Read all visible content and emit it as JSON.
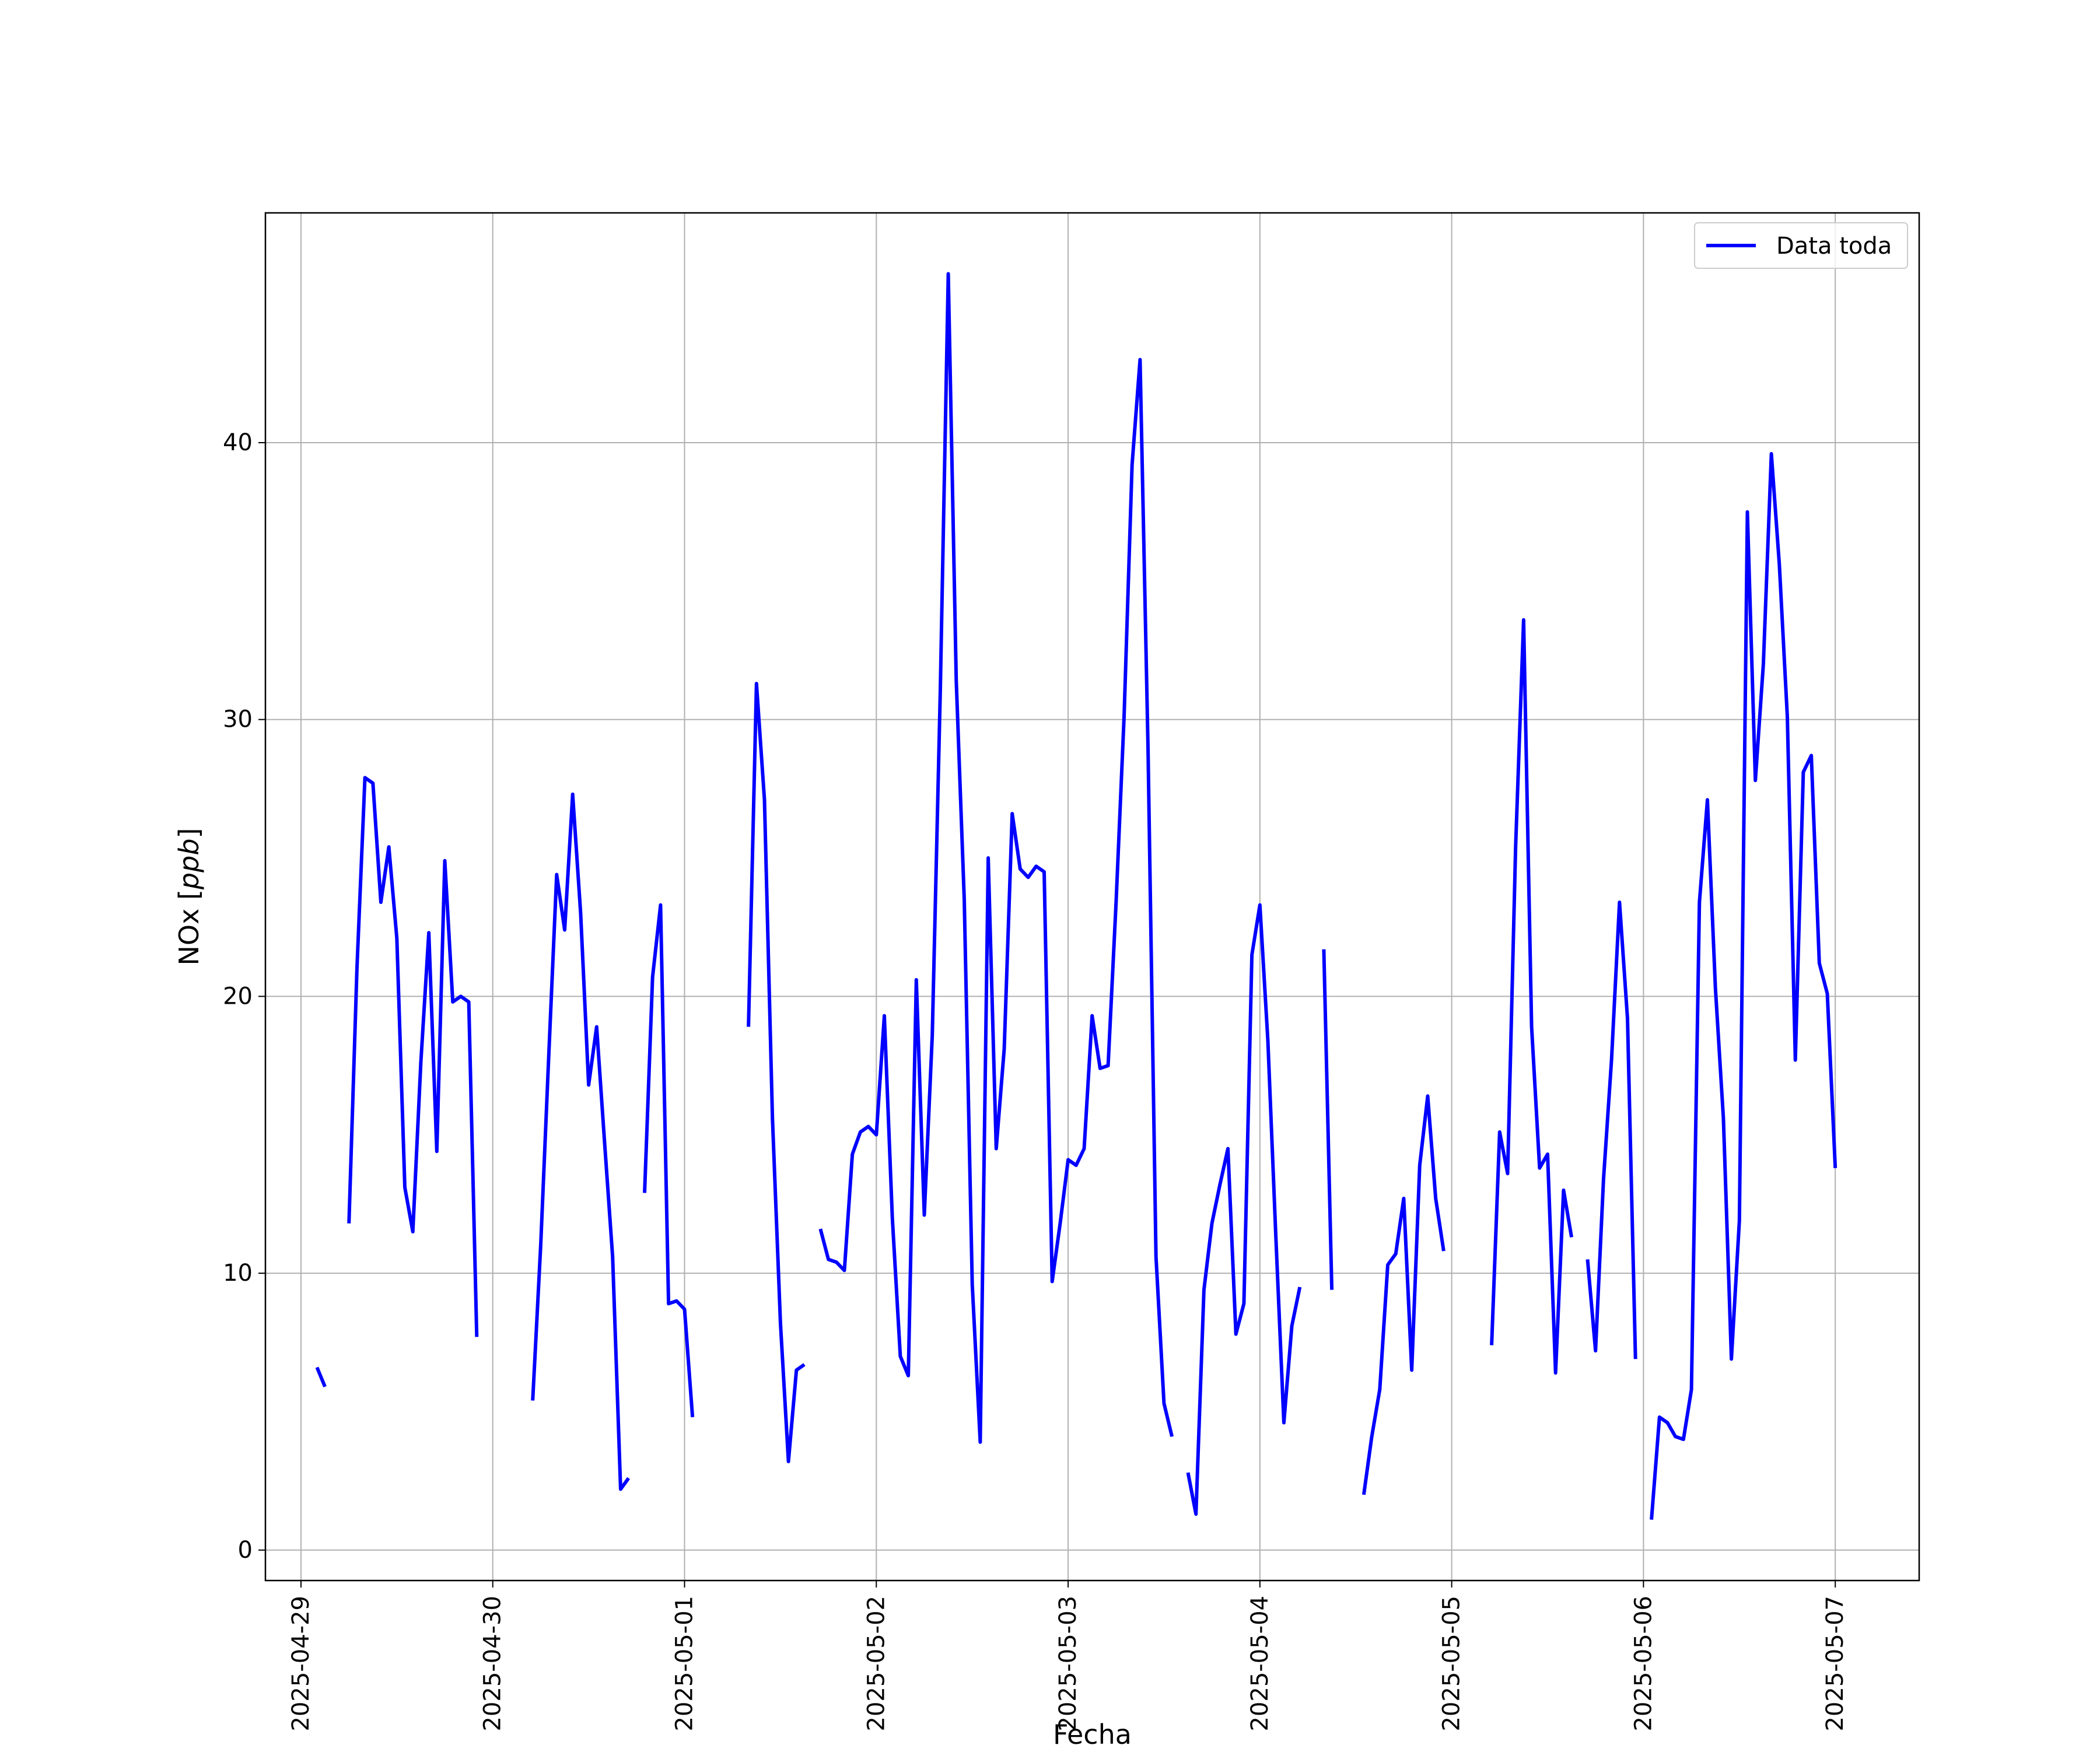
{
  "chart_data": {
    "type": "line",
    "title": "",
    "xlabel": "Fecha",
    "ylabel_main": "NOx [",
    "ylabel_unit": "ppb",
    "ylabel_end": "]",
    "x_ticks": [
      "2025-04-29",
      "2025-04-30",
      "2025-05-01",
      "2025-05-02",
      "2025-05-03",
      "2025-05-04",
      "2025-05-05",
      "2025-05-06",
      "2025-05-07"
    ],
    "y_ticks": [
      "0",
      "10",
      "20",
      "30",
      "40"
    ],
    "xlim": [
      "2025-04-28 19:33",
      "2025-05-07 10:30"
    ],
    "ylim": [
      -1.1,
      48.3
    ],
    "grid": true,
    "legend_position": "upper right",
    "series": [
      {
        "name": "Data toda",
        "color": "#0000ff",
        "points": [
          [
            "2025-04-29 02:00",
            6.6
          ],
          [
            "2025-04-29 03:00",
            5.9
          ],
          [
            "2025-04-29 04:00",
            null
          ],
          [
            "2025-04-29 06:00",
            11.8
          ],
          [
            "2025-04-29 07:00",
            21.0
          ],
          [
            "2025-04-29 08:00",
            27.9
          ],
          [
            "2025-04-29 09:00",
            27.7
          ],
          [
            "2025-04-29 10:00",
            23.4
          ],
          [
            "2025-04-29 11:00",
            25.4
          ],
          [
            "2025-04-29 12:00",
            22.1
          ],
          [
            "2025-04-29 13:00",
            13.1
          ],
          [
            "2025-04-29 14:00",
            11.5
          ],
          [
            "2025-04-29 15:00",
            17.6
          ],
          [
            "2025-04-29 16:00",
            22.3
          ],
          [
            "2025-04-29 17:00",
            14.4
          ],
          [
            "2025-04-29 18:00",
            24.9
          ],
          [
            "2025-04-29 19:00",
            19.8
          ],
          [
            "2025-04-29 20:00",
            20.0
          ],
          [
            "2025-04-29 21:00",
            19.8
          ],
          [
            "2025-04-29 22:00",
            7.7
          ],
          [
            "2025-04-29 23:00",
            null
          ],
          [
            "2025-04-30 05:00",
            5.4
          ],
          [
            "2025-04-30 06:00",
            11.0
          ],
          [
            "2025-04-30 07:00",
            17.8
          ],
          [
            "2025-04-30 08:00",
            24.4
          ],
          [
            "2025-04-30 09:00",
            22.4
          ],
          [
            "2025-04-30 10:00",
            27.3
          ],
          [
            "2025-04-30 11:00",
            23.0
          ],
          [
            "2025-04-30 12:00",
            16.8
          ],
          [
            "2025-04-30 13:00",
            18.9
          ],
          [
            "2025-04-30 14:00",
            14.7
          ],
          [
            "2025-04-30 15:00",
            10.6
          ],
          [
            "2025-04-30 16:00",
            2.2
          ],
          [
            "2025-04-30 17:00",
            2.6
          ],
          [
            "2025-04-30 18:00",
            null
          ],
          [
            "2025-04-30 19:00",
            12.9
          ],
          [
            "2025-04-30 20:00",
            20.7
          ],
          [
            "2025-04-30 21:00",
            23.3
          ],
          [
            "2025-04-30 22:00",
            8.9
          ],
          [
            "2025-04-30 23:00",
            9.0
          ],
          [
            "2025-05-01 00:00",
            8.7
          ],
          [
            "2025-05-01 01:00",
            4.8
          ],
          [
            "2025-05-01 02:00",
            null
          ],
          [
            "2025-05-01 08:00",
            18.9
          ],
          [
            "2025-05-01 09:00",
            31.3
          ],
          [
            "2025-05-01 10:00",
            27.1
          ],
          [
            "2025-05-01 11:00",
            15.6
          ],
          [
            "2025-05-01 12:00",
            8.2
          ],
          [
            "2025-05-01 13:00",
            3.2
          ],
          [
            "2025-05-01 14:00",
            6.5
          ],
          [
            "2025-05-01 15:00",
            6.7
          ],
          [
            "2025-05-01 16:00",
            null
          ],
          [
            "2025-05-01 17:00",
            11.6
          ],
          [
            "2025-05-01 18:00",
            10.5
          ],
          [
            "2025-05-01 19:00",
            10.4
          ],
          [
            "2025-05-01 20:00",
            10.1
          ],
          [
            "2025-05-01 21:00",
            14.3
          ],
          [
            "2025-05-01 22:00",
            15.1
          ],
          [
            "2025-05-01 23:00",
            15.3
          ],
          [
            "2025-05-02 00:00",
            15.0
          ],
          [
            "2025-05-02 01:00",
            19.3
          ],
          [
            "2025-05-02 02:00",
            12.0
          ],
          [
            "2025-05-02 03:00",
            7.0
          ],
          [
            "2025-05-02 04:00",
            6.3
          ],
          [
            "2025-05-02 05:00",
            20.6
          ],
          [
            "2025-05-02 06:00",
            12.1
          ],
          [
            "2025-05-02 07:00",
            18.6
          ],
          [
            "2025-05-02 08:00",
            31.0
          ],
          [
            "2025-05-02 09:00",
            46.1
          ],
          [
            "2025-05-02 10:00",
            31.4
          ],
          [
            "2025-05-02 11:00",
            23.5
          ],
          [
            "2025-05-02 12:00",
            9.6
          ],
          [
            "2025-05-02 13:00",
            3.9
          ],
          [
            "2025-05-02 14:00",
            25.0
          ],
          [
            "2025-05-02 15:00",
            14.5
          ],
          [
            "2025-05-02 16:00",
            18.1
          ],
          [
            "2025-05-02 17:00",
            26.6
          ],
          [
            "2025-05-02 18:00",
            24.6
          ],
          [
            "2025-05-02 19:00",
            24.3
          ],
          [
            "2025-05-02 20:00",
            24.7
          ],
          [
            "2025-05-02 21:00",
            24.5
          ],
          [
            "2025-05-02 22:00",
            9.7
          ],
          [
            "2025-05-02 23:00",
            11.8
          ],
          [
            "2025-05-03 00:00",
            14.1
          ],
          [
            "2025-05-03 01:00",
            13.9
          ],
          [
            "2025-05-03 02:00",
            14.5
          ],
          [
            "2025-05-03 03:00",
            19.3
          ],
          [
            "2025-05-03 04:00",
            17.4
          ],
          [
            "2025-05-03 05:00",
            17.5
          ],
          [
            "2025-05-03 06:00",
            23.4
          ],
          [
            "2025-05-03 07:00",
            30.1
          ],
          [
            "2025-05-03 08:00",
            39.2
          ],
          [
            "2025-05-03 09:00",
            43.0
          ],
          [
            "2025-05-03 10:00",
            28.9
          ],
          [
            "2025-05-03 11:00",
            10.6
          ],
          [
            "2025-05-03 12:00",
            5.3
          ],
          [
            "2025-05-03 13:00",
            4.1
          ],
          [
            "2025-05-03 14:00",
            null
          ],
          [
            "2025-05-03 15:00",
            2.8
          ],
          [
            "2025-05-03 16:00",
            1.3
          ],
          [
            "2025-05-03 17:00",
            9.4
          ],
          [
            "2025-05-03 18:00",
            11.8
          ],
          [
            "2025-05-03 19:00",
            13.2
          ],
          [
            "2025-05-03 20:00",
            14.5
          ],
          [
            "2025-05-03 21:00",
            7.8
          ],
          [
            "2025-05-03 22:00",
            8.9
          ],
          [
            "2025-05-03 23:00",
            21.5
          ],
          [
            "2025-05-04 00:00",
            23.3
          ],
          [
            "2025-05-04 01:00",
            18.4
          ],
          [
            "2025-05-04 02:00",
            11.3
          ],
          [
            "2025-05-04 03:00",
            4.6
          ],
          [
            "2025-05-04 04:00",
            8.1
          ],
          [
            "2025-05-04 05:00",
            9.5
          ],
          [
            "2025-05-04 06:00",
            null
          ],
          [
            "2025-05-04 08:00",
            21.7
          ],
          [
            "2025-05-04 09:00",
            9.4
          ],
          [
            "2025-05-04 10:00",
            null
          ],
          [
            "2025-05-04 13:00",
            2.0
          ],
          [
            "2025-05-04 14:00",
            4.1
          ],
          [
            "2025-05-04 15:00",
            5.8
          ],
          [
            "2025-05-04 16:00",
            10.3
          ],
          [
            "2025-05-04 17:00",
            10.7
          ],
          [
            "2025-05-04 18:00",
            12.7
          ],
          [
            "2025-05-04 19:00",
            6.5
          ],
          [
            "2025-05-04 20:00",
            13.9
          ],
          [
            "2025-05-04 21:00",
            16.4
          ],
          [
            "2025-05-04 22:00",
            12.7
          ],
          [
            "2025-05-04 23:00",
            10.8
          ],
          [
            "2025-05-05 00:00",
            null
          ],
          [
            "2025-05-05 05:00",
            7.4
          ],
          [
            "2025-05-05 06:00",
            15.1
          ],
          [
            "2025-05-05 07:00",
            13.6
          ],
          [
            "2025-05-05 08:00",
            25.4
          ],
          [
            "2025-05-05 09:00",
            33.6
          ],
          [
            "2025-05-05 10:00",
            18.9
          ],
          [
            "2025-05-05 11:00",
            13.8
          ],
          [
            "2025-05-05 12:00",
            14.3
          ],
          [
            "2025-05-05 13:00",
            6.4
          ],
          [
            "2025-05-05 14:00",
            13.0
          ],
          [
            "2025-05-05 15:00",
            11.3
          ],
          [
            "2025-05-05 16:00",
            null
          ],
          [
            "2025-05-05 17:00",
            10.5
          ],
          [
            "2025-05-05 18:00",
            7.2
          ],
          [
            "2025-05-05 19:00",
            13.4
          ],
          [
            "2025-05-05 20:00",
            17.7
          ],
          [
            "2025-05-05 21:00",
            23.4
          ],
          [
            "2025-05-05 22:00",
            19.2
          ],
          [
            "2025-05-05 23:00",
            6.9
          ],
          [
            "2025-05-06 00:00",
            null
          ],
          [
            "2025-05-06 01:00",
            1.1
          ],
          [
            "2025-05-06 02:00",
            4.8
          ],
          [
            "2025-05-06 03:00",
            4.6
          ],
          [
            "2025-05-06 04:00",
            4.1
          ],
          [
            "2025-05-06 05:00",
            4.0
          ],
          [
            "2025-05-06 06:00",
            5.8
          ],
          [
            "2025-05-06 07:00",
            23.4
          ],
          [
            "2025-05-06 08:00",
            27.1
          ],
          [
            "2025-05-06 09:00",
            20.3
          ],
          [
            "2025-05-06 10:00",
            15.6
          ],
          [
            "2025-05-06 11:00",
            6.9
          ],
          [
            "2025-05-06 12:00",
            11.9
          ],
          [
            "2025-05-06 13:00",
            37.5
          ],
          [
            "2025-05-06 14:00",
            27.8
          ],
          [
            "2025-05-06 15:00",
            32.0
          ],
          [
            "2025-05-06 16:00",
            39.6
          ],
          [
            "2025-05-06 17:00",
            35.6
          ],
          [
            "2025-05-06 18:00",
            30.1
          ],
          [
            "2025-05-06 19:00",
            17.7
          ],
          [
            "2025-05-06 20:00",
            28.1
          ],
          [
            "2025-05-06 21:00",
            28.7
          ],
          [
            "2025-05-06 22:00",
            21.2
          ],
          [
            "2025-05-06 23:00",
            20.1
          ],
          [
            "2025-05-07 00:00",
            13.8
          ]
        ]
      }
    ]
  }
}
